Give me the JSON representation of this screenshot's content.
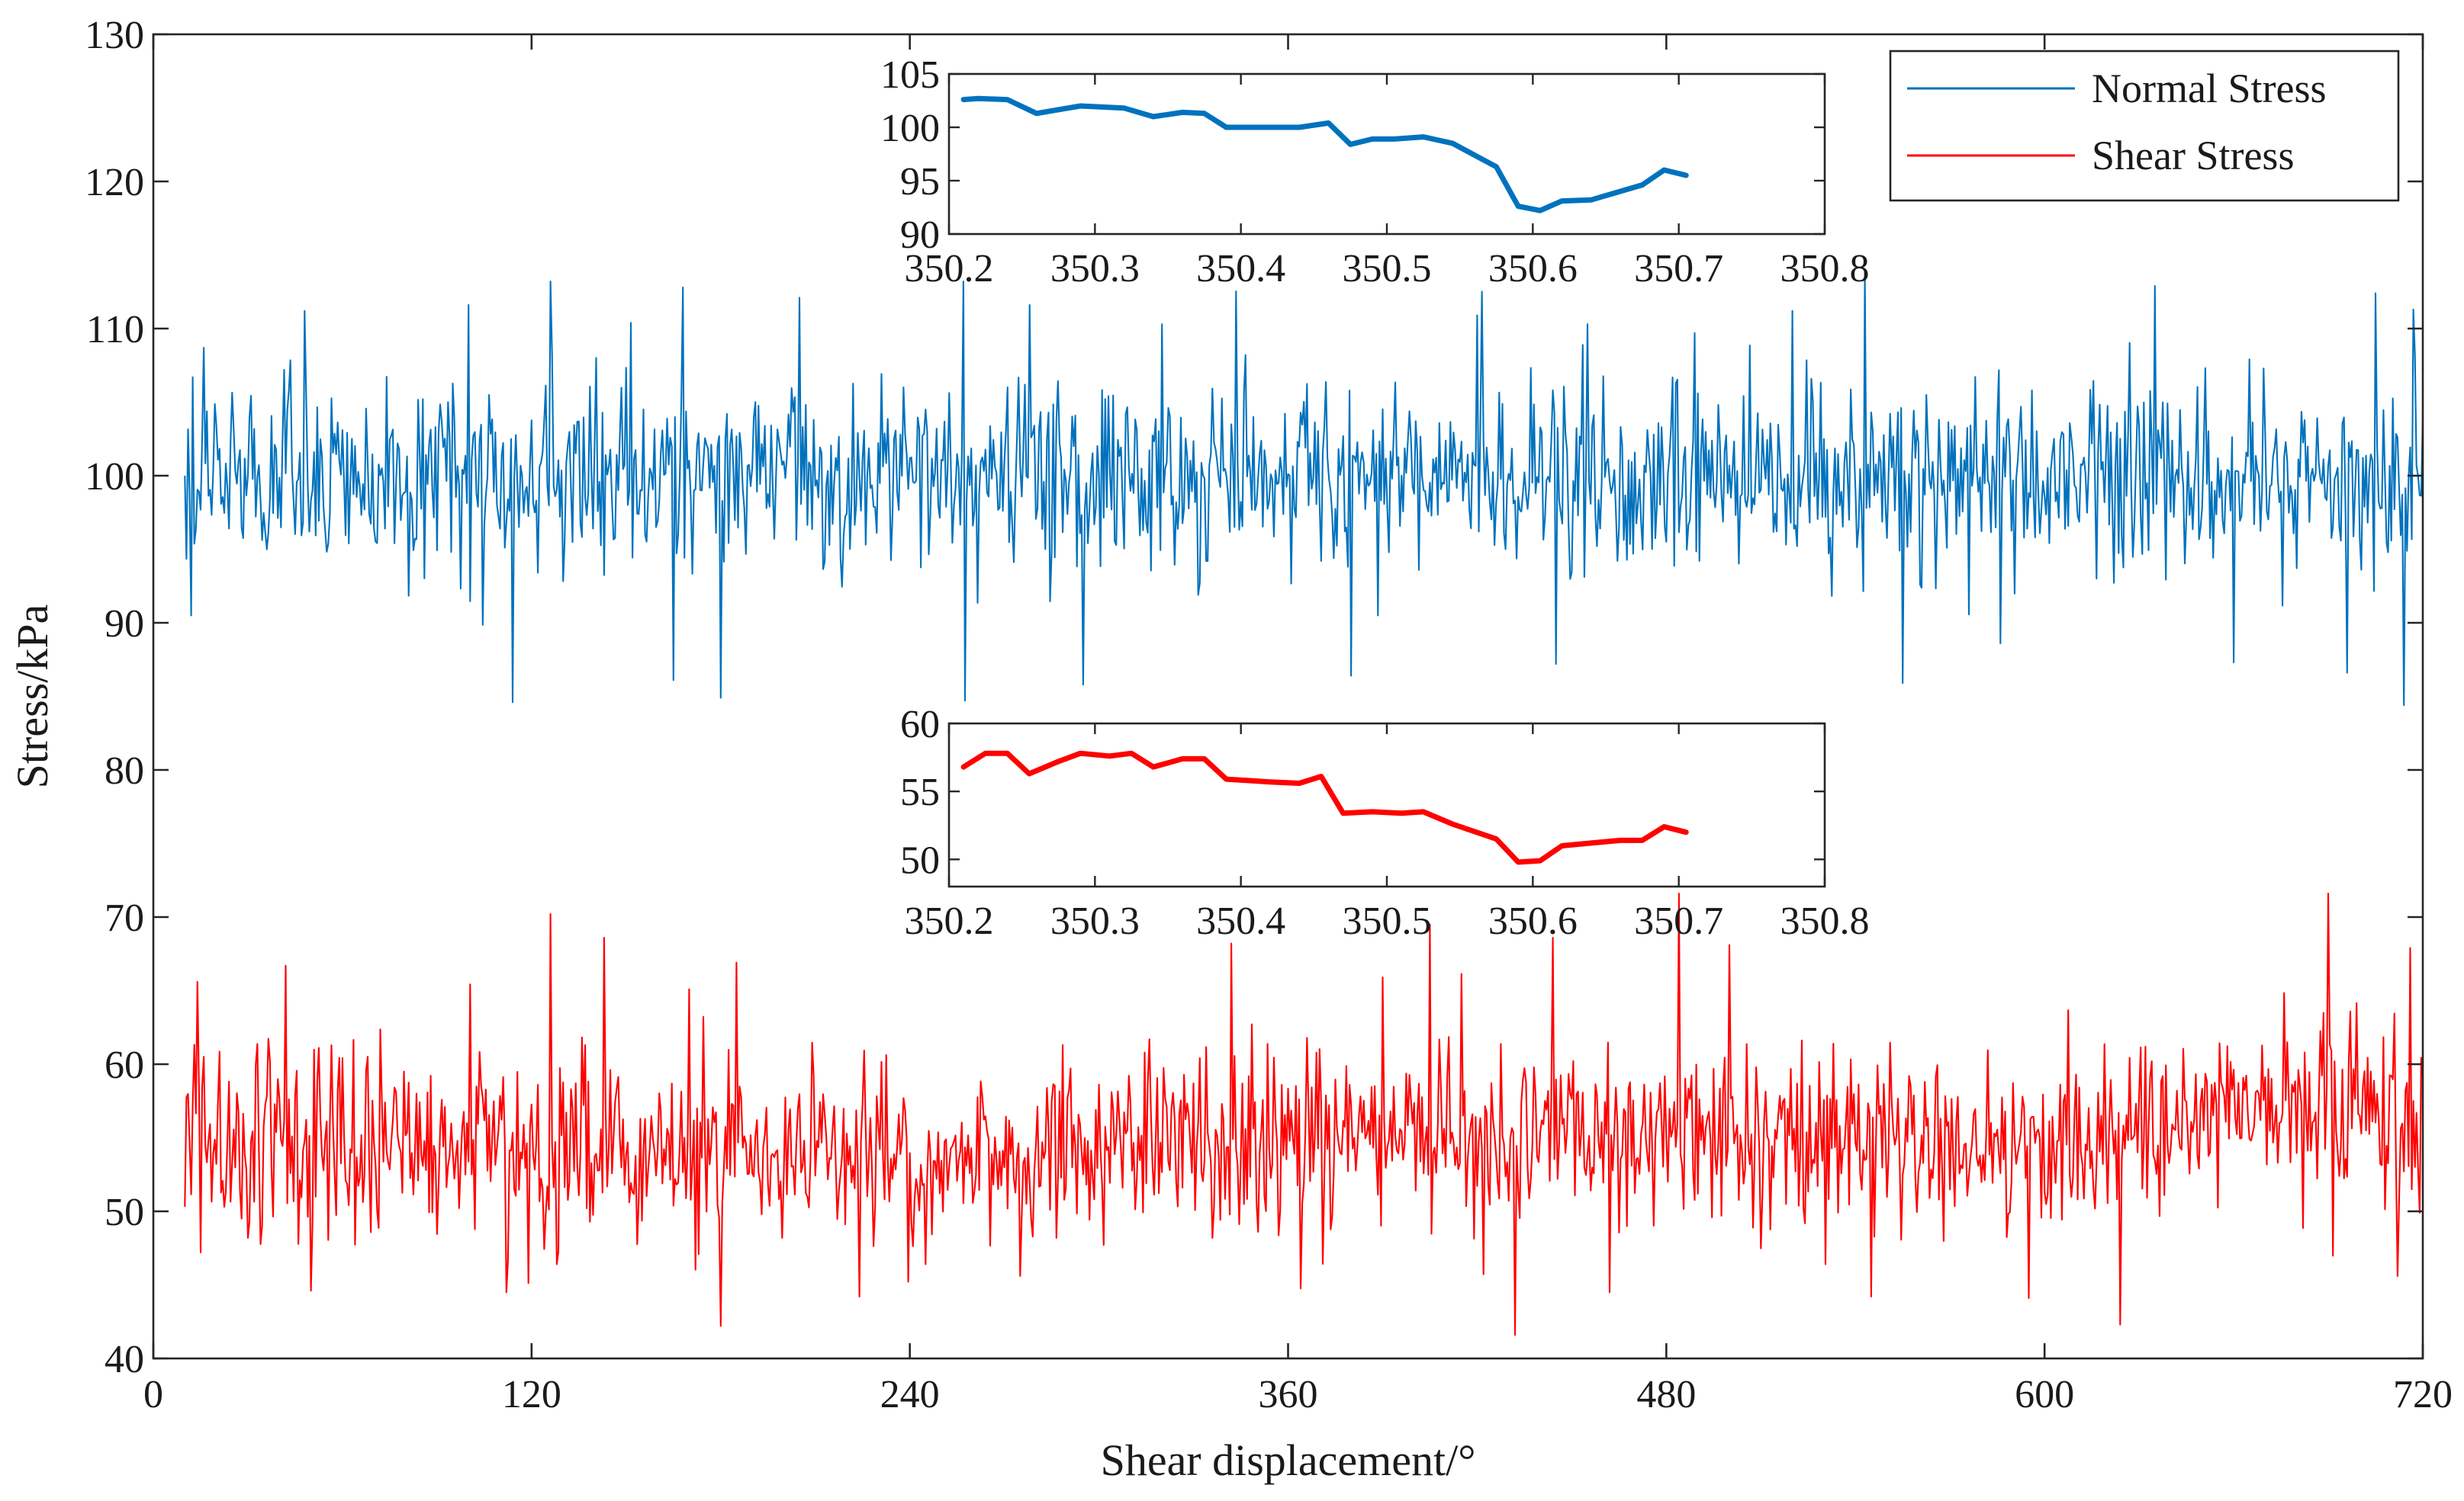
{
  "chart_data": [
    {
      "id": "main",
      "type": "line",
      "title": "",
      "xlabel": "Shear displacement/°",
      "ylabel": "Stress/kPa",
      "xlim": [
        0,
        720
      ],
      "ylim": [
        40,
        130
      ],
      "xticks": [
        0,
        120,
        240,
        360,
        480,
        600,
        720
      ],
      "yticks": [
        40,
        50,
        60,
        70,
        80,
        90,
        100,
        110,
        120,
        130
      ],
      "x_start": 10,
      "x_step": 0.5,
      "legend_position": "top-right",
      "series": [
        {
          "name": "Normal Stress",
          "color": "#0072BD",
          "anchors": [
            {
              "x": 10,
              "v": 100
            },
            {
              "x": 12,
              "v": 90.5
            },
            {
              "x": 16,
              "v": 108.7
            },
            {
              "x": 48,
              "v": 111.2
            },
            {
              "x": 100,
              "v": 111.6
            },
            {
              "x": 114,
              "v": 84.6
            },
            {
              "x": 126,
              "v": 113.2
            },
            {
              "x": 165,
              "v": 86.1
            },
            {
              "x": 168,
              "v": 112.8
            },
            {
              "x": 180,
              "v": 84.9
            },
            {
              "x": 205,
              "v": 112.1
            },
            {
              "x": 257,
              "v": 113.2
            },
            {
              "x": 257.5,
              "v": 84.7
            },
            {
              "x": 278,
              "v": 111.6
            },
            {
              "x": 295,
              "v": 85.8
            },
            {
              "x": 320,
              "v": 110.3
            },
            {
              "x": 380,
              "v": 86.4
            },
            {
              "x": 420,
              "v": 110.9
            },
            {
              "x": 445,
              "v": 87.2
            },
            {
              "x": 455,
              "v": 110.3
            },
            {
              "x": 520,
              "v": 111.2
            },
            {
              "x": 543,
              "v": 113.8
            },
            {
              "x": 555,
              "v": 85.9
            },
            {
              "x": 586,
              "v": 88.6
            },
            {
              "x": 635,
              "v": 112.9
            },
            {
              "x": 660,
              "v": 87.3
            },
            {
              "x": 696,
              "v": 86.6
            },
            {
              "x": 705,
              "v": 112.4
            },
            {
              "x": 714,
              "v": 84.4
            },
            {
              "x": 717,
              "v": 111.3
            }
          ],
          "noise_center": [
            [
              10,
              100
            ],
            [
              720,
              100
            ]
          ],
          "noise_amp": [
            [
              10,
              3.2
            ],
            [
              720,
              3.2
            ]
          ]
        },
        {
          "name": "Shear Stress",
          "color": "#FF0000",
          "anchors": [
            {
              "x": 10,
              "v": 50.3
            },
            {
              "x": 14,
              "v": 65.6
            },
            {
              "x": 15,
              "v": 47.2
            },
            {
              "x": 42,
              "v": 66.7
            },
            {
              "x": 50,
              "v": 44.6
            },
            {
              "x": 112,
              "v": 44.5
            },
            {
              "x": 126,
              "v": 70.2
            },
            {
              "x": 143,
              "v": 68.6
            },
            {
              "x": 170,
              "v": 65.1
            },
            {
              "x": 180,
              "v": 42.2
            },
            {
              "x": 185,
              "v": 66.9
            },
            {
              "x": 224,
              "v": 44.2
            },
            {
              "x": 245,
              "v": 46.4
            },
            {
              "x": 275,
              "v": 45.6
            },
            {
              "x": 342,
              "v": 68.2
            },
            {
              "x": 390,
              "v": 65.9
            },
            {
              "x": 405,
              "v": 69.5
            },
            {
              "x": 432,
              "v": 41.6
            },
            {
              "x": 444,
              "v": 68.6
            },
            {
              "x": 462,
              "v": 44.5
            },
            {
              "x": 484,
              "v": 71.6
            },
            {
              "x": 500,
              "v": 68.1
            },
            {
              "x": 545,
              "v": 44.2
            },
            {
              "x": 595,
              "v": 44.1
            },
            {
              "x": 624,
              "v": 42.3
            },
            {
              "x": 690,
              "v": 71.6
            },
            {
              "x": 712,
              "v": 45.6
            },
            {
              "x": 716,
              "v": 67.9
            },
            {
              "x": 719,
              "v": 49.9
            }
          ],
          "noise_center": [
            [
              10,
              55.5
            ],
            [
              120,
              54
            ],
            [
              240,
              53.3
            ],
            [
              360,
              55.3
            ],
            [
              480,
              55.5
            ],
            [
              600,
              54.2
            ],
            [
              660,
              56.5
            ],
            [
              700,
              57.5
            ],
            [
              720,
              55.5
            ]
          ],
          "noise_amp": [
            [
              10,
              3.6
            ],
            [
              120,
              3.4
            ],
            [
              240,
              2.7
            ],
            [
              360,
              3.2
            ],
            [
              480,
              3.3
            ],
            [
              600,
              2.6
            ],
            [
              660,
              3.0
            ],
            [
              700,
              3.6
            ],
            [
              720,
              3.4
            ]
          ]
        }
      ]
    },
    {
      "id": "inset-normal",
      "type": "line",
      "title": "",
      "xlim": [
        350.2,
        350.8
      ],
      "ylim": [
        90,
        105
      ],
      "xticks": [
        350.2,
        350.3,
        350.4,
        350.5,
        350.6,
        350.7,
        350.8
      ],
      "xtick_labels": [
        "350.2",
        "350.3",
        "350.4",
        "350.5",
        "350.6",
        "350.7",
        "350.8"
      ],
      "yticks": [
        90,
        95,
        100,
        105
      ],
      "series": [
        {
          "name": "Normal Stress",
          "color": "#0072BD",
          "x": [
            350.21,
            350.22,
            350.24,
            350.26,
            350.29,
            350.32,
            350.34,
            350.36,
            350.375,
            350.39,
            350.41,
            350.44,
            350.46,
            350.475,
            350.49,
            350.505,
            350.525,
            350.545,
            350.575,
            350.59,
            350.605,
            350.62,
            350.64,
            350.66,
            350.675,
            350.69,
            350.705
          ],
          "y": [
            102.6,
            102.7,
            102.6,
            101.3,
            102.0,
            101.8,
            101.0,
            101.4,
            101.3,
            100.0,
            100.0,
            100.0,
            100.4,
            98.4,
            98.9,
            98.9,
            99.1,
            98.5,
            96.3,
            92.6,
            92.2,
            93.1,
            93.2,
            94.0,
            94.6,
            96.0,
            95.5
          ]
        }
      ]
    },
    {
      "id": "inset-shear",
      "type": "line",
      "title": "",
      "xlim": [
        350.2,
        350.8
      ],
      "ylim": [
        48,
        60
      ],
      "xticks": [
        350.2,
        350.3,
        350.4,
        350.5,
        350.6,
        350.7,
        350.8
      ],
      "xtick_labels": [
        "350.2",
        "350.3",
        "350.4",
        "350.5",
        "350.6",
        "350.7",
        "350.8"
      ],
      "yticks": [
        50,
        55,
        60
      ],
      "series": [
        {
          "name": "Shear Stress",
          "color": "#FF0000",
          "x": [
            350.21,
            350.225,
            350.24,
            350.255,
            350.275,
            350.29,
            350.31,
            350.325,
            350.34,
            350.36,
            350.375,
            350.39,
            350.42,
            350.44,
            350.455,
            350.47,
            350.49,
            350.51,
            350.525,
            350.545,
            350.575,
            350.59,
            350.605,
            350.62,
            350.64,
            350.66,
            350.675,
            350.69,
            350.705
          ],
          "y": [
            56.8,
            57.8,
            57.8,
            56.3,
            57.2,
            57.8,
            57.6,
            57.8,
            56.8,
            57.4,
            57.4,
            55.9,
            55.7,
            55.6,
            56.1,
            53.4,
            53.5,
            53.4,
            53.5,
            52.6,
            51.5,
            49.8,
            49.9,
            51.0,
            51.2,
            51.4,
            51.4,
            52.4,
            52.0
          ]
        }
      ]
    }
  ]
}
